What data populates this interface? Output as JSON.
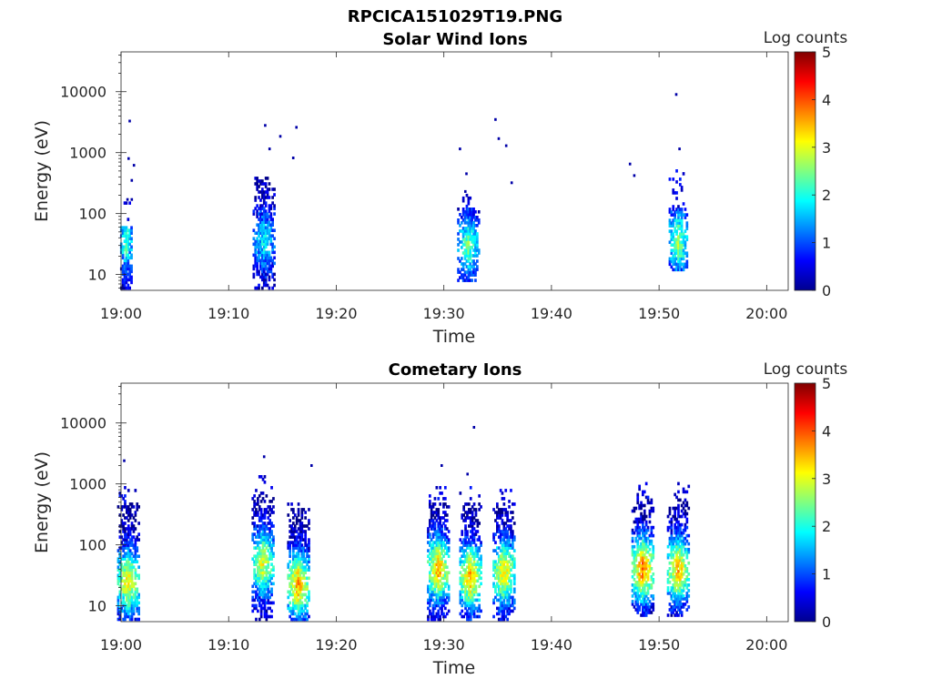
{
  "figure_title": "RPCICA151029T19.PNG",
  "colorbar": {
    "label": "Log counts",
    "ticks": [
      "0",
      "1",
      "2",
      "3",
      "4",
      "5"
    ],
    "range": [
      0,
      5
    ],
    "colormap": "jet"
  },
  "chart_data": [
    {
      "type": "heatmap",
      "title": "Solar Wind Ions",
      "xlabel": "Time",
      "ylabel": "Energy (eV)",
      "x_ticks": [
        "19:00",
        "19:10",
        "19:20",
        "19:30",
        "19:40",
        "19:50",
        "20:00"
      ],
      "xlim": [
        "19:00",
        "20:02"
      ],
      "y_ticks": [
        "10",
        "100",
        "1000",
        "10000"
      ],
      "ylim": [
        5.5,
        45000
      ],
      "yscale": "log",
      "bursts": [
        {
          "time": "19:00.5",
          "e_low": 6,
          "e_high": 60,
          "peak_energy": 35,
          "peak_log_counts": 2.2,
          "max_energy": 170
        },
        {
          "time": "19:13.3",
          "e_low": 6,
          "e_high": 400,
          "peak_energy": 35,
          "peak_log_counts": 1.8,
          "max_energy": 430
        },
        {
          "time": "19:32.3",
          "e_low": 8,
          "e_high": 130,
          "peak_energy": 30,
          "peak_log_counts": 2.4,
          "max_energy": 230
        },
        {
          "time": "19:51.8",
          "e_low": 12,
          "e_high": 120,
          "peak_energy": 35,
          "peak_log_counts": 2.6,
          "max_energy": 600
        }
      ],
      "scattered_points": [
        {
          "time": "19:00.8",
          "energy": 3300
        },
        {
          "time": "19:00.7",
          "energy": 800
        },
        {
          "time": "19:01.2",
          "energy": 620
        },
        {
          "time": "19:01.0",
          "energy": 350
        },
        {
          "time": "19:00.6",
          "energy": 170
        },
        {
          "time": "19:01.0",
          "energy": 170
        },
        {
          "time": "19:13.4",
          "energy": 2800
        },
        {
          "time": "19:14.8",
          "energy": 1850
        },
        {
          "time": "19:16.3",
          "energy": 2600
        },
        {
          "time": "19:13.8",
          "energy": 1150
        },
        {
          "time": "19:16.0",
          "energy": 820
        },
        {
          "time": "19:31.5",
          "energy": 1150
        },
        {
          "time": "19:34.8",
          "energy": 3500
        },
        {
          "time": "19:35.1",
          "energy": 1700
        },
        {
          "time": "19:35.8",
          "energy": 1300
        },
        {
          "time": "19:36.3",
          "energy": 320
        },
        {
          "time": "19:32.1",
          "energy": 450
        },
        {
          "time": "19:32.0",
          "energy": 230
        },
        {
          "time": "19:47.3",
          "energy": 650
        },
        {
          "time": "19:47.7",
          "energy": 420
        },
        {
          "time": "19:51.6",
          "energy": 9000
        },
        {
          "time": "19:51.9",
          "energy": 1150
        }
      ]
    },
    {
      "type": "heatmap",
      "title": "Cometary Ions",
      "xlabel": "Time",
      "ylabel": "Energy (eV)",
      "x_ticks": [
        "19:00",
        "19:10",
        "19:20",
        "19:30",
        "19:40",
        "19:50",
        "20:00"
      ],
      "xlim": [
        "19:00",
        "20:02"
      ],
      "y_ticks": [
        "10",
        "100",
        "1000",
        "10000"
      ],
      "ylim": [
        5.5,
        45000
      ],
      "yscale": "log",
      "bursts": [
        {
          "time": "19:00.7",
          "e_low": 6,
          "e_high": 500,
          "peak_energy": 25,
          "peak_log_counts": 3.2,
          "max_energy": 900
        },
        {
          "time": "19:13.2",
          "e_low": 6,
          "e_high": 700,
          "peak_energy": 50,
          "peak_log_counts": 3.0,
          "max_energy": 1500
        },
        {
          "time": "19:16.5",
          "e_low": 6,
          "e_high": 400,
          "peak_energy": 22,
          "peak_log_counts": 3.6,
          "max_energy": 500
        },
        {
          "time": "19:29.5",
          "e_low": 6,
          "e_high": 500,
          "peak_energy": 40,
          "peak_log_counts": 3.5,
          "max_energy": 900
        },
        {
          "time": "19:32.5",
          "e_low": 6,
          "e_high": 500,
          "peak_energy": 30,
          "peak_log_counts": 3.5,
          "max_energy": 900
        },
        {
          "time": "19:35.6",
          "e_low": 6,
          "e_high": 450,
          "peak_energy": 35,
          "peak_log_counts": 3.3,
          "max_energy": 800
        },
        {
          "time": "19:48.5",
          "e_low": 7,
          "e_high": 600,
          "peak_energy": 40,
          "peak_log_counts": 3.8,
          "max_energy": 1100
        },
        {
          "time": "19:51.8",
          "e_low": 7,
          "e_high": 600,
          "peak_energy": 40,
          "peak_log_counts": 3.5,
          "max_energy": 1200
        }
      ],
      "scattered_points": [
        {
          "time": "19:00.3",
          "energy": 2400
        },
        {
          "time": "19:13.3",
          "energy": 2800
        },
        {
          "time": "19:17.7",
          "energy": 2000
        },
        {
          "time": "19:29.8",
          "energy": 2000
        },
        {
          "time": "19:32.2",
          "energy": 1450
        },
        {
          "time": "19:32.8",
          "energy": 8500
        }
      ]
    }
  ]
}
